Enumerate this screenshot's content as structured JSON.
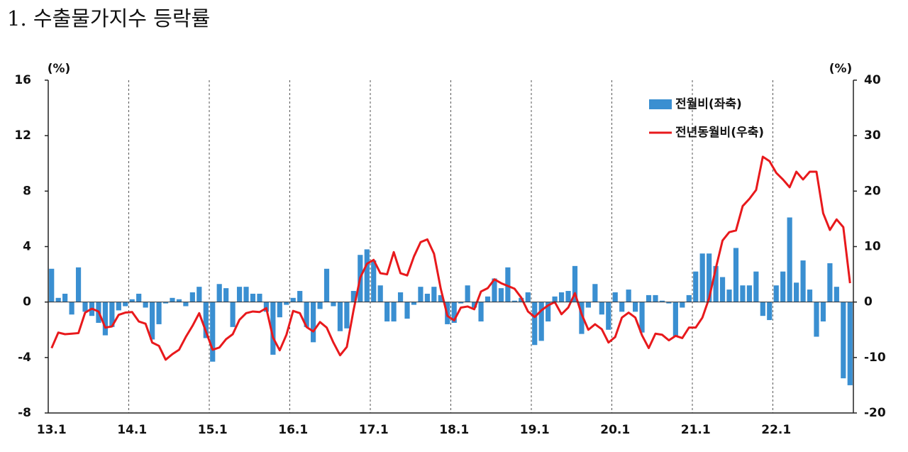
{
  "chart_data": {
    "type": "bar",
    "title": "1. 수출물가지수 등락률",
    "ylabel": "(%)",
    "y2label": "(%)",
    "ylim": [
      -8,
      16
    ],
    "yticks": [
      16,
      12,
      8,
      4,
      0,
      -4,
      -8
    ],
    "y2lim": [
      -20,
      40
    ],
    "y2ticks": [
      40,
      30,
      20,
      10,
      0,
      -10,
      -20
    ],
    "grid": true,
    "legend": "top-right",
    "categories": [
      "13.1",
      null,
      null,
      null,
      null,
      null,
      null,
      null,
      null,
      null,
      null,
      null,
      "14.1",
      null,
      null,
      null,
      null,
      null,
      null,
      null,
      null,
      null,
      null,
      null,
      "15.1",
      null,
      null,
      null,
      null,
      null,
      null,
      null,
      null,
      null,
      null,
      null,
      "16.1",
      null,
      null,
      null,
      null,
      null,
      null,
      null,
      null,
      null,
      null,
      null,
      "17.1",
      null,
      null,
      null,
      null,
      null,
      null,
      null,
      null,
      null,
      null,
      null,
      "18.1",
      null,
      null,
      null,
      null,
      null,
      null,
      null,
      null,
      null,
      null,
      null,
      "19.1",
      null,
      null,
      null,
      null,
      null,
      null,
      null,
      null,
      null,
      null,
      null,
      "20.1",
      null,
      null,
      null,
      null,
      null,
      null,
      null,
      null,
      null,
      null,
      null,
      "21.1",
      null,
      null,
      null,
      null,
      null,
      null,
      null,
      null,
      null,
      null,
      null,
      "22.1",
      null,
      null,
      null,
      null,
      null,
      null,
      null,
      null,
      null,
      null,
      null
    ],
    "series": [
      {
        "name": "전월비(좌축)",
        "type": "bar",
        "color": "#3a8fd1",
        "values": [
          2.4,
          0.3,
          0.6,
          -0.9,
          2.5,
          -0.7,
          -1.0,
          -1.5,
          -2.4,
          -1.8,
          -0.6,
          -0.3,
          0.2,
          0.6,
          -0.4,
          -2.7,
          -1.6,
          -0.1,
          0.3,
          0.2,
          -0.3,
          0.7,
          1.1,
          -2.6,
          -4.3,
          1.3,
          1.0,
          -1.8,
          1.1,
          1.1,
          0.6,
          0.6,
          -0.7,
          -3.8,
          -1.1,
          -0.2,
          0.3,
          0.8,
          -1.8,
          -2.9,
          -0.5,
          2.4,
          -0.3,
          -2.1,
          -1.9,
          0.8,
          3.4,
          3.8,
          3.0,
          1.2,
          -1.4,
          -1.4,
          0.7,
          -1.2,
          -0.2,
          1.1,
          0.6,
          1.1,
          0.5,
          -1.6,
          -1.5,
          -0.1,
          1.2,
          -0.4,
          -1.4,
          0.4,
          1.7,
          1.0,
          2.5,
          0.1,
          0.3,
          0.7,
          -3.1,
          -2.8,
          -1.4,
          0.4,
          0.7,
          0.8,
          2.6,
          -2.3,
          -0.4,
          1.3,
          -0.9,
          -2.0,
          0.7,
          -0.7,
          0.9,
          -0.7,
          -2.2,
          0.5,
          0.5,
          0.1,
          -0.1,
          -2.5,
          -0.4,
          0.5,
          2.2,
          3.5,
          3.5,
          2.6,
          1.8,
          0.9,
          3.9,
          1.2,
          1.2,
          2.2,
          -1.0,
          -1.3,
          1.2,
          2.2,
          6.1,
          1.4,
          3.0,
          0.9,
          -2.5,
          -1.4,
          2.8,
          1.1,
          -5.5,
          -6.0
        ]
      },
      {
        "name": "전년동월비(우축)",
        "type": "line",
        "axis": "y2",
        "color": "#e8191c",
        "values": [
          -8.3,
          -5.5,
          -5.8,
          -5.7,
          -5.6,
          -1.9,
          -1.2,
          -1.7,
          -4.6,
          -4.4,
          -2.3,
          -1.9,
          -1.8,
          -3.5,
          -3.9,
          -7.3,
          -7.9,
          -10.4,
          -9.4,
          -8.6,
          -6.3,
          -4.3,
          -2.0,
          -5.3,
          -8.6,
          -8.2,
          -6.7,
          -5.8,
          -3.2,
          -2.0,
          -1.7,
          -1.8,
          -1.1,
          -6.4,
          -8.7,
          -5.9,
          -1.6,
          -2.0,
          -4.5,
          -5.3,
          -3.6,
          -4.6,
          -7.3,
          -9.6,
          -8.1,
          -1.5,
          4.4,
          6.9,
          7.6,
          5.2,
          5.0,
          9.0,
          5.2,
          4.8,
          8.2,
          10.8,
          11.3,
          8.7,
          2.4,
          -2.5,
          -3.3,
          -1.0,
          -0.8,
          -1.3,
          1.9,
          2.5,
          4.1,
          3.4,
          2.9,
          2.4,
          0.8,
          -1.7,
          -2.7,
          -1.5,
          -0.6,
          0.0,
          -2.2,
          -1.0,
          1.6,
          -2.2,
          -5.0,
          -4.0,
          -4.9,
          -7.3,
          -6.3,
          -2.8,
          -1.9,
          -2.8,
          -6.0,
          -8.3,
          -5.7,
          -5.9,
          -6.9,
          -6.1,
          -6.5,
          -4.6,
          -4.6,
          -2.8,
          0.7,
          6.1,
          11.1,
          12.6,
          12.9,
          17.3,
          18.6,
          20.2,
          26.2,
          25.4,
          23.3,
          22.1,
          20.7,
          23.5,
          22.1,
          23.5,
          23.5,
          16.0,
          13.0,
          14.9,
          13.5,
          3.4
        ]
      }
    ]
  }
}
